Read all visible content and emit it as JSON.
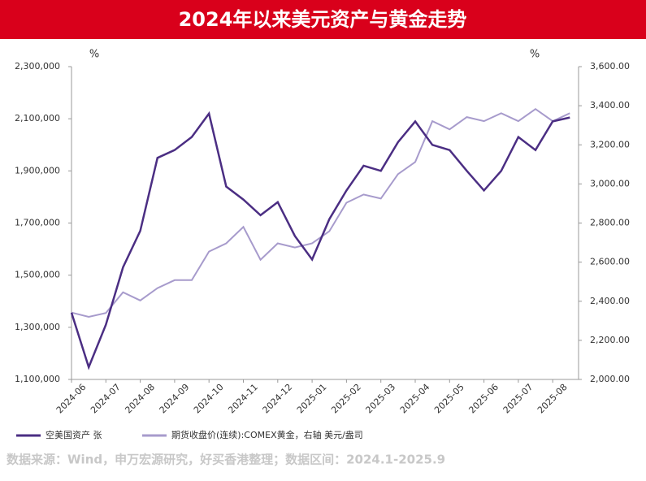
{
  "chart_data": {
    "type": "line",
    "title": "2024年以来美元资产与黄金走势",
    "y_label": "%",
    "y2_label": "%",
    "source": "数据来源：Wind，申万宏源研究，好买香港整理；数据区间：2024.1-2025.9",
    "categories": [
      "2024-06",
      null,
      "2024-07",
      null,
      "2024-08",
      null,
      "2024-09",
      null,
      "2024-10",
      null,
      "2024-11",
      null,
      "2024-12",
      null,
      "2025-01",
      null,
      "2025-02",
      null,
      "2025-03",
      null,
      "2025-04",
      null,
      "2025-05",
      null,
      "2025-06",
      null,
      "2025-07",
      null,
      "2025-08",
      null
    ],
    "ylim": [
      1100000,
      2300000
    ],
    "yticks": [
      {
        "value": 1100000,
        "label": "1,100,000"
      },
      {
        "value": 1300000,
        "label": "1,300,000"
      },
      {
        "value": 1500000,
        "label": "1,500,000"
      },
      {
        "value": 1700000,
        "label": "1,700,000"
      },
      {
        "value": 1900000,
        "label": "1,900,000"
      },
      {
        "value": 2100000,
        "label": "2,100,000"
      },
      {
        "value": 2300000,
        "label": "2,300,000"
      }
    ],
    "y2lim": [
      2000,
      3600
    ],
    "y2ticks": [
      {
        "value": 2000,
        "label": "2,000.00"
      },
      {
        "value": 2200,
        "label": "2,200.00"
      },
      {
        "value": 2400,
        "label": "2,400.00"
      },
      {
        "value": 2600,
        "label": "2,600.00"
      },
      {
        "value": 2800,
        "label": "2,800.00"
      },
      {
        "value": 3000,
        "label": "3,000.00"
      },
      {
        "value": 3200,
        "label": "3,200.00"
      },
      {
        "value": 3400,
        "label": "3,400.00"
      },
      {
        "value": 3600,
        "label": "3,600.00"
      }
    ],
    "series": [
      {
        "name": "空美国资产 张",
        "color": "#4b2e83",
        "values": [
          1356000,
          1147000,
          1310000,
          1530000,
          1670000,
          1950000,
          1980000,
          2030000,
          2120000,
          1840000,
          1790000,
          1730000,
          1780000,
          1650000,
          1560000,
          1715000,
          1825000,
          1920000,
          1900000,
          2010000,
          2090000,
          2000000,
          1980000,
          1900000,
          1825000,
          1900000,
          2030000,
          1980000,
          2090000,
          2105000
        ]
      },
      {
        "name": "期货收盘价(连续):COMEX黄金，右轴 美元/盎司",
        "color": "#a79bcc",
        "axis": "y2",
        "values": [
          2342,
          2320,
          2340,
          2446,
          2404,
          2467,
          2508,
          2508,
          2654,
          2696,
          2780,
          2612,
          2696,
          2675,
          2696,
          2758,
          2904,
          2946,
          2925,
          3050,
          3112,
          3321,
          3279,
          3342,
          3321,
          3362,
          3321,
          3383,
          3321,
          3362
        ]
      }
    ]
  }
}
